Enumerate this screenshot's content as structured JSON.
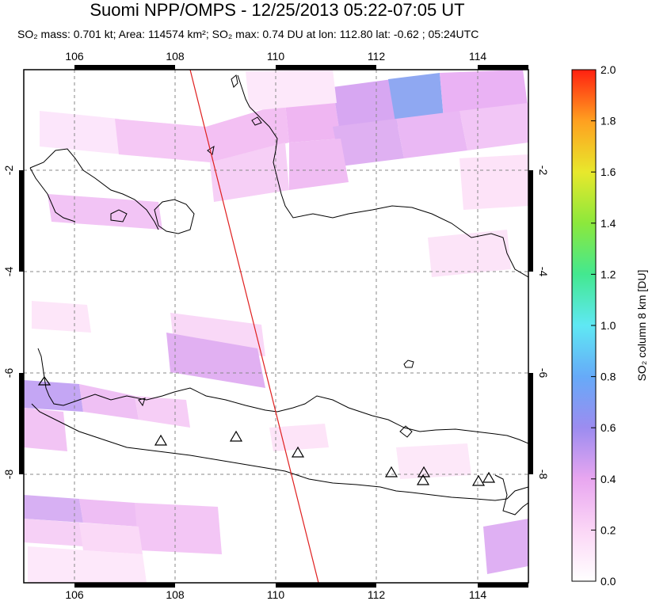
{
  "header": {
    "title": "Suomi NPP/OMPS - 12/25/2013 05:22-07:05 UT",
    "subtitle": "SO₂ mass: 0.701 kt; Area: 114574 km²; SO₂ max: 0.74 DU at lon: 112.80 lat: -0.62 ; 05:24UTC"
  },
  "map": {
    "lon_ticks": [
      "106",
      "108",
      "110",
      "112",
      "114"
    ],
    "lat_ticks": [
      "-2",
      "-4",
      "-6",
      "-8"
    ],
    "lon_range": [
      105,
      115
    ],
    "lat_range": [
      -10,
      0
    ],
    "colors": {
      "swath_line": "#e02020",
      "coast": "#000000",
      "grid": "#888888"
    }
  },
  "colorbar": {
    "label": "SO₂ column 8 km [DU]",
    "ticks": [
      "2.0",
      "1.8",
      "1.6",
      "1.4",
      "1.2",
      "1.0",
      "0.8",
      "0.6",
      "0.4",
      "0.2",
      "0.0"
    ],
    "range": [
      0.0,
      2.0
    ]
  }
}
